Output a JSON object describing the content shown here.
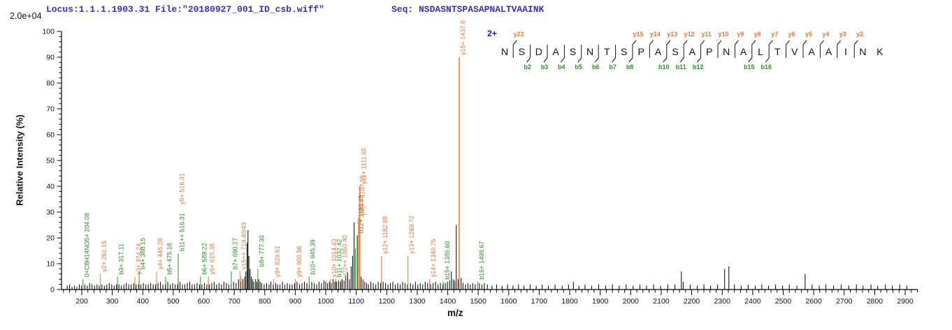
{
  "header": {
    "locus_file": "Locus:1.1.1.1903.31 File:\"20180927_001_ID_csb.wiff\"",
    "seq": "Seq: NSDASNTSPASAPNALTVAAINK",
    "scale_label": "2.0e+04"
  },
  "colors": {
    "y_ion": "#e0783c",
    "b_ion": "#2a8f2a",
    "peak_black": "#000000",
    "header_text": "#3434b4",
    "charge_blue": "#1515dd",
    "axis": "#000000"
  },
  "sequence_panel": {
    "charge": "2+",
    "residues": [
      "N",
      "S",
      "D",
      "A",
      "S",
      "N",
      "T",
      "S",
      "P",
      "A",
      "S",
      "A",
      "P",
      "N",
      "A",
      "L",
      "T",
      "V",
      "A",
      "A",
      "I",
      "N",
      "K"
    ],
    "y_ions": [
      {
        "gap": 1,
        "label": "y22"
      },
      {
        "gap": 8,
        "label": "y15"
      },
      {
        "gap": 9,
        "label": "y14"
      },
      {
        "gap": 10,
        "label": "y13"
      },
      {
        "gap": 11,
        "label": "y12"
      },
      {
        "gap": 12,
        "label": "y11"
      },
      {
        "gap": 13,
        "label": "y10"
      },
      {
        "gap": 14,
        "label": "y9"
      },
      {
        "gap": 15,
        "label": "y8"
      },
      {
        "gap": 16,
        "label": "y7"
      },
      {
        "gap": 17,
        "label": "y6"
      },
      {
        "gap": 18,
        "label": "y5"
      },
      {
        "gap": 19,
        "label": "y4"
      },
      {
        "gap": 20,
        "label": "y3"
      },
      {
        "gap": 21,
        "label": "y2"
      }
    ],
    "b_ions": [
      {
        "gap": 2,
        "label": "b2"
      },
      {
        "gap": 3,
        "label": "b3"
      },
      {
        "gap": 4,
        "label": "b4"
      },
      {
        "gap": 5,
        "label": "b5"
      },
      {
        "gap": 6,
        "label": "b6"
      },
      {
        "gap": 7,
        "label": "b7"
      },
      {
        "gap": 8,
        "label": "b8"
      },
      {
        "gap": 10,
        "label": "b10"
      },
      {
        "gap": 11,
        "label": "b11"
      },
      {
        "gap": 12,
        "label": "b12"
      },
      {
        "gap": 15,
        "label": "b15"
      },
      {
        "gap": 16,
        "label": "b16"
      }
    ]
  },
  "chart_data": {
    "type": "bar",
    "subtype": "ms2-centroid-spectrum",
    "title": "",
    "xlabel": "m/z",
    "ylabel": "Relative  Intensity (%)",
    "y_axis_scale": "2.0e+04",
    "xlim": [
      133,
      2941
    ],
    "ylim": [
      0,
      100
    ],
    "x_major_ticks": {
      "start": 200,
      "end": 2900,
      "step": 100
    },
    "x_minor_step": 20,
    "y_major_ticks": {
      "start": 0,
      "end": 100,
      "step": 10
    },
    "y_minor_step": 2,
    "annotated_peaks": [
      {
        "mz": 204.08,
        "intensity": 4,
        "ion": "oxonium",
        "labels": [
          {
            "text": "0+C8H14NO5+ 204.08",
            "role": "b"
          }
        ]
      },
      {
        "mz": 261.16,
        "intensity": 6,
        "ion": "y",
        "labels": [
          {
            "text": "y2+ 261.16",
            "role": "y"
          }
        ]
      },
      {
        "mz": 317.11,
        "intensity": 5,
        "ion": "b",
        "labels": [
          {
            "text": "b3+ 317.11",
            "role": "b"
          }
        ]
      },
      {
        "mz": 374.24,
        "intensity": 5,
        "ion": "y",
        "labels": [
          {
            "text": "y3+ 374.24",
            "role": "y"
          }
        ]
      },
      {
        "mz": 388.15,
        "intensity": 7,
        "ion": "b",
        "labels": [
          {
            "text": "b4+ 388.15",
            "role": "b"
          }
        ]
      },
      {
        "mz": 445.28,
        "intensity": 7,
        "ion": "y",
        "labels": [
          {
            "text": "y4+ 445.28",
            "role": "y"
          }
        ]
      },
      {
        "mz": 475.18,
        "intensity": 5,
        "ion": "b",
        "labels": [
          {
            "text": "b5+ 475.18",
            "role": "b"
          }
        ]
      },
      {
        "mz": 516.31,
        "intensity": 14,
        "ion": "b",
        "labels": [
          {
            "text": "b11++ 516.31",
            "role": "b"
          },
          {
            "text": "y5+ 516.31",
            "role": "y"
          }
        ]
      },
      {
        "mz": 589.22,
        "intensity": 5,
        "ion": "b",
        "labels": [
          {
            "text": "b6+ 589.22",
            "role": "b"
          }
        ]
      },
      {
        "mz": 615.38,
        "intensity": 5,
        "ion": "y",
        "labels": [
          {
            "text": "y6+ 615.38",
            "role": "y"
          }
        ]
      },
      {
        "mz": 690.27,
        "intensity": 7,
        "ion": "b",
        "labels": [
          {
            "text": "b7+ 690.27",
            "role": "b"
          }
        ]
      },
      {
        "mz": 719.4,
        "intensity": 7,
        "ion": "y",
        "labels": [
          {
            "text": "y15++ 719.40/43",
            "role": "y"
          }
        ]
      },
      {
        "mz": 722.8,
        "intensity": 5,
        "ion": "y",
        "labels": []
      },
      {
        "mz": 777.3,
        "intensity": 8,
        "ion": "b",
        "labels": [
          {
            "text": "b8+ 777.30",
            "role": "b"
          }
        ]
      },
      {
        "mz": 829.51,
        "intensity": 4,
        "ion": "y",
        "labels": [
          {
            "text": "y8+ 829.51",
            "role": "y"
          }
        ]
      },
      {
        "mz": 900.56,
        "intensity": 4,
        "ion": "y",
        "labels": [
          {
            "text": "y9+ 900.56",
            "role": "y"
          }
        ]
      },
      {
        "mz": 945.39,
        "intensity": 5,
        "ion": "b",
        "labels": [
          {
            "text": "b10+ 945.39",
            "role": "b"
          }
        ]
      },
      {
        "mz": 1014.43,
        "intensity": 4,
        "ion": "y",
        "labels": [
          {
            "text": "y10+ 1014.43",
            "role": "y"
          }
        ]
      },
      {
        "mz": 1032.42,
        "intensity": 4,
        "ion": "b",
        "labels": [
          {
            "text": "b11+ 1032.42",
            "role": "b"
          }
        ]
      },
      {
        "mz": 1050.4,
        "intensity": 4,
        "ion": "y",
        "labels": [
          {
            "text": "y22++ 1050.40",
            "role": "y"
          }
        ]
      },
      {
        "mz": 1097.5,
        "intensity": 16,
        "ion": "b",
        "labels": []
      },
      {
        "mz": 1103.45,
        "intensity": 21,
        "ion": "b",
        "labels": [
          {
            "text": "b12+ 1103.45",
            "role": "b"
          }
        ]
      },
      {
        "mz": 1107.55,
        "intensity": 28,
        "ion": "precursor",
        "labels": [
          {
            "text": "[M]++ 1107.55",
            "role": "y"
          }
        ]
      },
      {
        "mz": 1111.65,
        "intensity": 40,
        "ion": "y",
        "labels": [
          {
            "text": "y11+ 1111.65",
            "role": "y"
          }
        ]
      },
      {
        "mz": 1182.68,
        "intensity": 13,
        "ion": "y",
        "labels": [
          {
            "text": "y12+ 1182.68",
            "role": "y"
          }
        ]
      },
      {
        "mz": 1269.72,
        "intensity": 13,
        "ion": "y",
        "labels": [
          {
            "text": "y13+ 1269.72",
            "role": "y"
          }
        ]
      },
      {
        "mz": 1340.75,
        "intensity": 4,
        "ion": "y",
        "labels": [
          {
            "text": "y14+ 1340.75",
            "role": "y"
          }
        ]
      },
      {
        "mz": 1385.6,
        "intensity": 3,
        "ion": "b",
        "labels": [
          {
            "text": "b15+ 1385.60",
            "role": "b"
          }
        ]
      },
      {
        "mz": 1437.8,
        "intensity": 90,
        "ion": "y",
        "labels": [
          {
            "text": "y15+ 1437.8",
            "role": "y"
          }
        ]
      },
      {
        "mz": 1498.67,
        "intensity": 3,
        "ion": "b",
        "labels": [
          {
            "text": "b16+ 1498.67",
            "role": "b"
          }
        ]
      }
    ],
    "noise_peaks": [
      [
        152,
        1.5
      ],
      [
        160,
        2
      ],
      [
        168,
        1
      ],
      [
        176,
        1.5
      ],
      [
        184,
        1
      ],
      [
        192,
        2
      ],
      [
        199,
        1.5
      ],
      [
        210,
        2
      ],
      [
        218,
        1.5
      ],
      [
        226,
        2.5
      ],
      [
        234,
        2
      ],
      [
        242,
        1.5
      ],
      [
        250,
        2
      ],
      [
        257,
        1.5
      ],
      [
        266,
        2
      ],
      [
        274,
        1.5
      ],
      [
        282,
        2
      ],
      [
        290,
        2.5
      ],
      [
        298,
        2
      ],
      [
        306,
        1.5
      ],
      [
        314,
        2
      ],
      [
        322,
        2
      ],
      [
        330,
        1.5
      ],
      [
        338,
        2
      ],
      [
        346,
        2.5
      ],
      [
        354,
        2
      ],
      [
        362,
        2
      ],
      [
        370,
        2.5
      ],
      [
        378,
        2
      ],
      [
        386,
        2
      ],
      [
        394,
        2
      ],
      [
        402,
        2.5
      ],
      [
        410,
        2
      ],
      [
        418,
        2
      ],
      [
        426,
        2.5
      ],
      [
        434,
        2
      ],
      [
        442,
        2
      ],
      [
        450,
        2.5
      ],
      [
        458,
        3
      ],
      [
        466,
        2
      ],
      [
        474,
        2
      ],
      [
        482,
        3
      ],
      [
        490,
        2
      ],
      [
        498,
        2.5
      ],
      [
        506,
        2
      ],
      [
        514,
        2
      ],
      [
        522,
        3
      ],
      [
        530,
        2
      ],
      [
        538,
        2
      ],
      [
        546,
        2.5
      ],
      [
        554,
        3
      ],
      [
        562,
        2
      ],
      [
        570,
        2
      ],
      [
        578,
        2.5
      ],
      [
        586,
        2
      ],
      [
        594,
        2
      ],
      [
        602,
        2.5
      ],
      [
        610,
        2
      ],
      [
        618,
        2
      ],
      [
        626,
        2.5
      ],
      [
        634,
        3
      ],
      [
        642,
        2
      ],
      [
        650,
        2.5
      ],
      [
        658,
        2
      ],
      [
        666,
        3
      ],
      [
        674,
        2.5
      ],
      [
        682,
        2
      ],
      [
        690,
        2
      ],
      [
        698,
        3
      ],
      [
        706,
        2.5
      ],
      [
        714,
        4
      ],
      [
        722,
        3
      ],
      [
        728,
        4
      ],
      [
        734,
        5
      ],
      [
        738,
        7
      ],
      [
        742,
        18
      ],
      [
        745,
        23
      ],
      [
        748,
        13
      ],
      [
        752,
        8
      ],
      [
        756,
        5
      ],
      [
        760,
        4
      ],
      [
        764,
        3
      ],
      [
        770,
        4
      ],
      [
        774,
        3
      ],
      [
        780,
        4
      ],
      [
        785,
        3
      ],
      [
        790,
        2.5
      ],
      [
        798,
        2
      ],
      [
        806,
        2.5
      ],
      [
        814,
        2
      ],
      [
        820,
        3
      ],
      [
        828,
        2
      ],
      [
        836,
        2.5
      ],
      [
        842,
        2
      ],
      [
        850,
        2
      ],
      [
        858,
        3
      ],
      [
        866,
        2
      ],
      [
        874,
        2.5
      ],
      [
        882,
        2
      ],
      [
        890,
        2
      ],
      [
        898,
        2.5
      ],
      [
        906,
        3
      ],
      [
        914,
        2
      ],
      [
        922,
        2.5
      ],
      [
        930,
        3
      ],
      [
        938,
        2.5
      ],
      [
        946,
        2
      ],
      [
        954,
        3
      ],
      [
        962,
        2.5
      ],
      [
        970,
        2
      ],
      [
        978,
        3
      ],
      [
        986,
        2.5
      ],
      [
        994,
        3.5
      ],
      [
        1000,
        3
      ],
      [
        1006,
        2.5
      ],
      [
        1012,
        3
      ],
      [
        1018,
        2.5
      ],
      [
        1024,
        4
      ],
      [
        1030,
        3
      ],
      [
        1036,
        3
      ],
      [
        1042,
        3.5
      ],
      [
        1048,
        3
      ],
      [
        1054,
        4
      ],
      [
        1060,
        3.5
      ],
      [
        1066,
        5
      ],
      [
        1072,
        6.5
      ],
      [
        1078,
        4
      ],
      [
        1083,
        9
      ],
      [
        1088,
        13
      ],
      [
        1093,
        26
      ],
      [
        1116,
        5
      ],
      [
        1122,
        4
      ],
      [
        1128,
        3
      ],
      [
        1134,
        2.5
      ],
      [
        1140,
        2
      ],
      [
        1148,
        3
      ],
      [
        1156,
        2.5
      ],
      [
        1164,
        2
      ],
      [
        1172,
        3
      ],
      [
        1180,
        2.5
      ],
      [
        1188,
        3
      ],
      [
        1196,
        2.5
      ],
      [
        1204,
        2
      ],
      [
        1212,
        2.5
      ],
      [
        1220,
        3
      ],
      [
        1228,
        2
      ],
      [
        1236,
        2.5
      ],
      [
        1244,
        2
      ],
      [
        1252,
        3
      ],
      [
        1260,
        2.5
      ],
      [
        1268,
        2
      ],
      [
        1278,
        2.5
      ],
      [
        1286,
        2
      ],
      [
        1294,
        3
      ],
      [
        1302,
        2
      ],
      [
        1310,
        2.5
      ],
      [
        1318,
        2
      ],
      [
        1326,
        3
      ],
      [
        1334,
        2.5
      ],
      [
        1344,
        2
      ],
      [
        1352,
        2.5
      ],
      [
        1360,
        3
      ],
      [
        1368,
        2
      ],
      [
        1376,
        2.5
      ],
      [
        1384,
        2
      ],
      [
        1392,
        2.5
      ],
      [
        1399,
        3
      ],
      [
        1406,
        3.5
      ],
      [
        1412,
        7
      ],
      [
        1418,
        4
      ],
      [
        1423,
        3.5
      ],
      [
        1428,
        25
      ],
      [
        1434,
        4
      ],
      [
        1444,
        4.5
      ],
      [
        1450,
        2.5
      ],
      [
        1458,
        2
      ],
      [
        1466,
        2.5
      ],
      [
        1474,
        2
      ],
      [
        1482,
        2.5
      ],
      [
        1490,
        2
      ],
      [
        1504,
        2.5
      ],
      [
        1512,
        2
      ],
      [
        1520,
        2.5
      ],
      [
        1530,
        2
      ],
      [
        1545,
        1.5
      ],
      [
        1560,
        2
      ],
      [
        1578,
        1.5
      ],
      [
        1596,
        2
      ],
      [
        1614,
        1.5
      ],
      [
        1632,
        2
      ],
      [
        1650,
        1.5
      ],
      [
        1670,
        2
      ],
      [
        1690,
        1.5
      ],
      [
        1710,
        2
      ],
      [
        1730,
        1.5
      ],
      [
        1752,
        2
      ],
      [
        1775,
        1.5
      ],
      [
        1796,
        2
      ],
      [
        1812,
        3
      ],
      [
        1830,
        1.5
      ],
      [
        1850,
        2
      ],
      [
        1872,
        1.5
      ],
      [
        1895,
        2
      ],
      [
        1918,
        1.5
      ],
      [
        1940,
        2
      ],
      [
        1962,
        1.5
      ],
      [
        1985,
        2
      ],
      [
        2008,
        1.5
      ],
      [
        2030,
        2
      ],
      [
        2052,
        1.5
      ],
      [
        2075,
        2
      ],
      [
        2098,
        1.5
      ],
      [
        2122,
        2
      ],
      [
        2145,
        2
      ],
      [
        2166,
        7
      ],
      [
        2172,
        3
      ],
      [
        2195,
        2
      ],
      [
        2218,
        1.5
      ],
      [
        2240,
        2
      ],
      [
        2262,
        1.5
      ],
      [
        2285,
        2
      ],
      [
        2308,
        8
      ],
      [
        2322,
        9
      ],
      [
        2340,
        2
      ],
      [
        2362,
        1.5
      ],
      [
        2385,
        2
      ],
      [
        2408,
        1.5
      ],
      [
        2430,
        2
      ],
      [
        2452,
        1.5
      ],
      [
        2475,
        2
      ],
      [
        2498,
        1.5
      ],
      [
        2520,
        2
      ],
      [
        2545,
        1.5
      ],
      [
        2572,
        6
      ],
      [
        2595,
        2
      ],
      [
        2618,
        1.5
      ],
      [
        2640,
        2
      ],
      [
        2665,
        1.5
      ],
      [
        2690,
        2
      ],
      [
        2715,
        1.5
      ],
      [
        2740,
        2
      ],
      [
        2762,
        1.5
      ],
      [
        2788,
        2
      ],
      [
        2810,
        1.5
      ],
      [
        2835,
        2
      ],
      [
        2858,
        1.5
      ],
      [
        2882,
        2
      ],
      [
        2905,
        1.5
      ]
    ]
  }
}
